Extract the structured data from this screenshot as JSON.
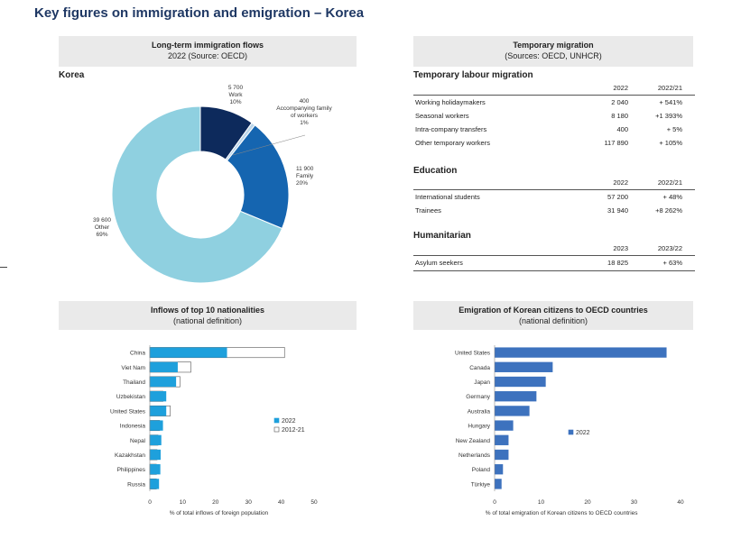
{
  "page": {
    "title": "Key figures on immigration and emigration – Korea"
  },
  "panels": {
    "longterm": {
      "title": "Long-term immigration flows",
      "subtitle": "2022 (Source: OECD)",
      "country": "Korea"
    },
    "temporary": {
      "title": "Temporary migration",
      "subtitle": "(Sources: OECD, UNHCR)"
    },
    "nationalities": {
      "title": "Inflows of top 10 nationalities",
      "subtitle": "(national definition)"
    },
    "emigration": {
      "title": "Emigration of Korean citizens to OECD countries",
      "subtitle": "(national definition)"
    }
  },
  "temporary_tables": {
    "labour": {
      "heading": "Temporary labour migration",
      "col1": "2022",
      "col2": "2022/21",
      "rows": [
        {
          "label": "Working holidaymakers",
          "v1": "2 040",
          "v2": "+ 541%"
        },
        {
          "label": "Seasonal workers",
          "v1": "8 180",
          "v2": "+1 393%"
        },
        {
          "label": "Intra-company transfers",
          "v1": "400",
          "v2": "+ 5%"
        },
        {
          "label": "Other temporary workers",
          "v1": "117 890",
          "v2": "+ 105%"
        }
      ]
    },
    "education": {
      "heading": "Education",
      "col1": "2022",
      "col2": "2022/21",
      "rows": [
        {
          "label": "International students",
          "v1": "57 200",
          "v2": "+ 48%"
        },
        {
          "label": "Trainees",
          "v1": "31 940",
          "v2": "+8 262%"
        }
      ]
    },
    "humanitarian": {
      "heading": "Humanitarian",
      "col1": "2023",
      "col2": "2023/22",
      "rows": [
        {
          "label": "Asylum seekers",
          "v1": "18 825",
          "v2": "+ 63%"
        }
      ]
    }
  },
  "chart_data": [
    {
      "type": "pie",
      "variant": "donut",
      "slices": [
        {
          "name": "Work",
          "value": 5700,
          "pct": "10%",
          "color": "#0d2a5c"
        },
        {
          "name": "Accompanying family of workers",
          "value": 400,
          "pct": "1%",
          "color": "#bcd6ea"
        },
        {
          "name": "Family",
          "value": 11900,
          "pct": "20%",
          "color": "#1565b0"
        },
        {
          "name": "Other",
          "value": 39600,
          "pct": "69%",
          "color": "#8fd0e0"
        }
      ],
      "labels": [
        {
          "lines": [
            "5 700",
            "Work",
            "10%"
          ]
        },
        {
          "lines": [
            "400",
            "Accompanying family",
            "of workers",
            "1%"
          ]
        },
        {
          "lines": [
            "11 900",
            "Family",
            "20%"
          ]
        },
        {
          "lines": [
            "39 600",
            "Other",
            "69%"
          ]
        }
      ]
    },
    {
      "type": "bar",
      "orientation": "horizontal",
      "categories": [
        "China",
        "Viet Nam",
        "Thailand",
        "Uzbekistan",
        "United States",
        "Indonesia",
        "Nepal",
        "Kazakhstan",
        "Philippines",
        "Russia"
      ],
      "series": [
        {
          "name": "2022",
          "values": [
            23.5,
            8.5,
            8.0,
            5.0,
            5.0,
            4.0,
            3.5,
            3.3,
            3.2,
            2.8
          ],
          "color": "#1ea0dc"
        },
        {
          "name": "2012-21",
          "values": [
            41.0,
            12.5,
            9.2,
            4.0,
            6.2,
            3.0,
            2.5,
            2.2,
            2.0,
            2.0
          ],
          "color": "#ffffff"
        }
      ],
      "xlabel": "% of total inflows of foreign population",
      "xlim": [
        0,
        50
      ],
      "xticks": [
        "0",
        "10",
        "20",
        "30",
        "40",
        "50"
      ],
      "legend": "right"
    },
    {
      "type": "bar",
      "orientation": "horizontal",
      "categories": [
        "United States",
        "Canada",
        "Japan",
        "Germany",
        "Australia",
        "Hungary",
        "New Zealand",
        "Netherlands",
        "Poland",
        "Türkiye"
      ],
      "series": [
        {
          "name": "2022",
          "values": [
            37.0,
            12.5,
            11.0,
            9.0,
            7.5,
            4.0,
            3.0,
            3.0,
            1.8,
            1.5
          ],
          "color": "#3d72be"
        }
      ],
      "xlabel": "% of total emigration of Korean citizens to OECD countries",
      "xlim": [
        0,
        40
      ],
      "xticks": [
        "0",
        "10",
        "20",
        "30",
        "40"
      ],
      "legend": "right"
    }
  ]
}
